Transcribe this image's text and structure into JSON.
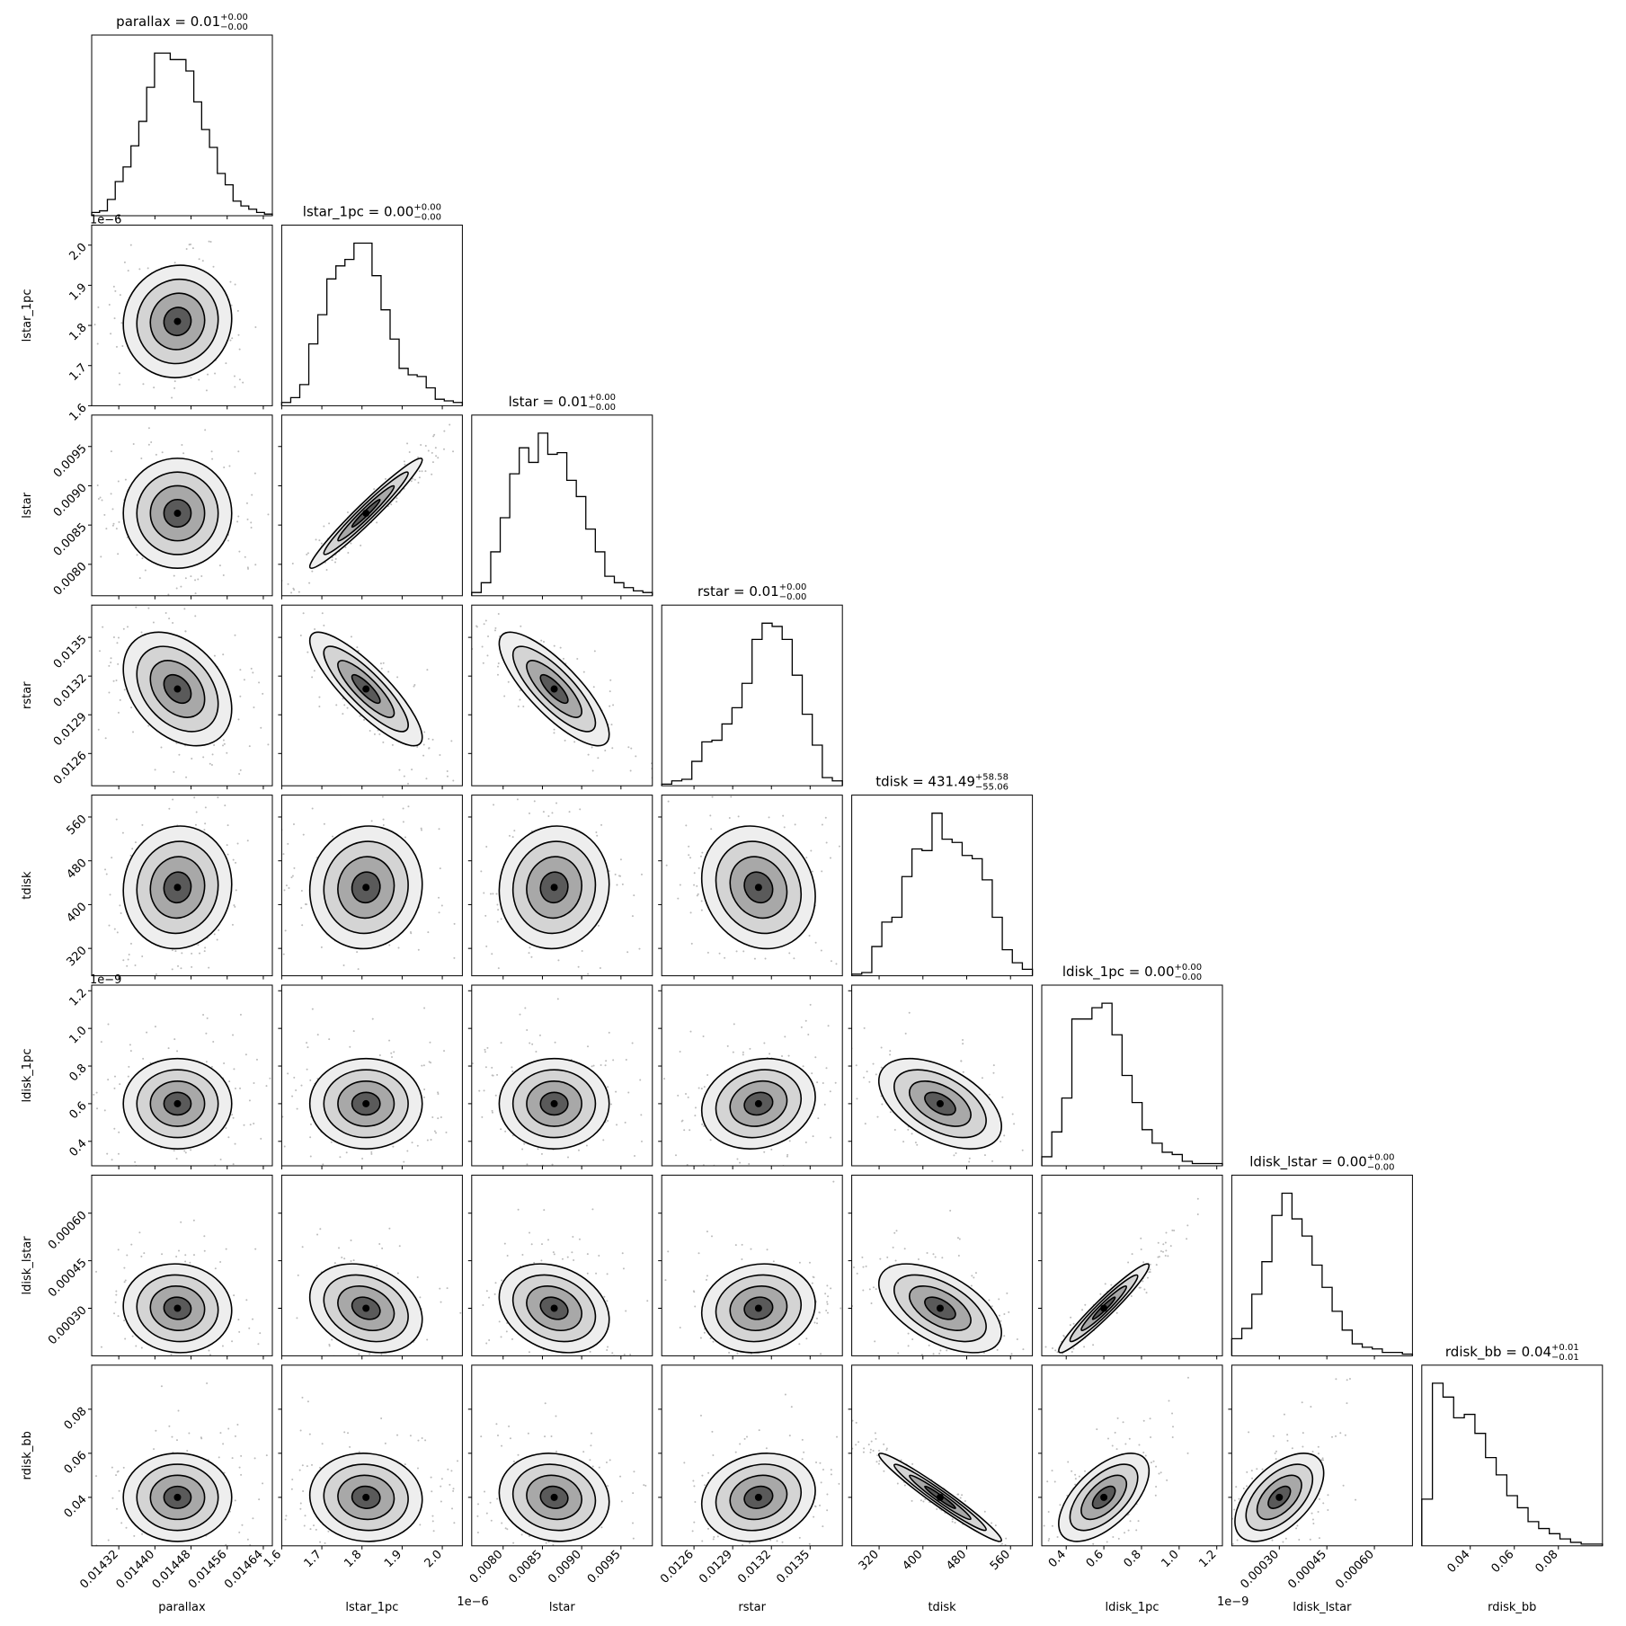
{
  "chart_data": {
    "type": "corner",
    "parameters": [
      {
        "name": "parallax",
        "title_prefix": "parallax = ",
        "median": "0.01",
        "plus": "+0.00",
        "minus": "−0.00",
        "range": [
          0.01426,
          0.01466
        ],
        "ticks": [
          "0.01432",
          "0.01440",
          "0.01448",
          "0.01456",
          "0.01464"
        ],
        "tick_values": [
          0.01432,
          0.0144,
          0.01448,
          0.01456,
          0.01464
        ],
        "offset": "",
        "mean": 0.01445,
        "sd": 6e-05,
        "hist": [
          2,
          3,
          10,
          21,
          30,
          43,
          58,
          79,
          100,
          100,
          96,
          96,
          89,
          70,
          53,
          42,
          26,
          19,
          9,
          6,
          4,
          2,
          1
        ]
      },
      {
        "name": "lstar_1pc",
        "title_prefix": "lstar_1pc = ",
        "median": "0.00",
        "plus": "+0.00",
        "minus": "−0.00",
        "range": [
          1.6,
          2.05
        ],
        "ticks": [
          "1.6",
          "1.7",
          "1.8",
          "1.9",
          "2.0"
        ],
        "tick_values": [
          1.6,
          1.7,
          1.8,
          1.9,
          2.0
        ],
        "offset": "1e−6",
        "mean": 1.81,
        "sd": 0.07,
        "hist": [
          2,
          5,
          13,
          38,
          56,
          78,
          86,
          90,
          100,
          100,
          80,
          59,
          41,
          23,
          19,
          18,
          11,
          4,
          3,
          2
        ]
      },
      {
        "name": "lstar",
        "title_prefix": "lstar = ",
        "median": "0.01",
        "plus": "+0.00",
        "minus": "−0.00",
        "range": [
          0.0076,
          0.0099
        ],
        "ticks": [
          "0.0080",
          "0.0085",
          "0.0090",
          "0.0095"
        ],
        "tick_values": [
          0.008,
          0.0085,
          0.009,
          0.0095
        ],
        "offset": "",
        "mean": 0.00865,
        "sd": 0.00035,
        "hist": [
          2,
          8,
          27,
          48,
          75,
          91,
          82,
          100,
          87,
          88,
          71,
          61,
          41,
          27,
          12,
          8,
          5,
          3,
          2
        ]
      },
      {
        "name": "rstar",
        "title_prefix": "rstar = ",
        "median": "0.01",
        "plus": "+0.00",
        "minus": "−0.00",
        "range": [
          0.01235,
          0.01375
        ],
        "ticks": [
          "0.0126",
          "0.0129",
          "0.0132",
          "0.0135"
        ],
        "tick_values": [
          0.0126,
          0.0129,
          0.0132,
          0.0135
        ],
        "offset": "",
        "mean": 0.0131,
        "sd": 0.00022,
        "hist": [
          1,
          3,
          4,
          15,
          27,
          28,
          38,
          48,
          63,
          90,
          100,
          98,
          90,
          68,
          44,
          25,
          5,
          3
        ]
      },
      {
        "name": "tdisk",
        "title_prefix": "tdisk = ",
        "median": "431.49",
        "plus": "+58.58",
        "minus": "−55.06",
        "range": [
          270,
          600
        ],
        "ticks": [
          "320",
          "400",
          "480",
          "560"
        ],
        "tick_values": [
          320,
          400,
          480,
          560
        ],
        "offset": "",
        "mean": 431.49,
        "sd": 56.0,
        "hist": [
          1,
          2,
          18,
          33,
          36,
          61,
          78,
          77,
          100,
          84,
          82,
          74,
          72,
          59,
          36,
          16,
          8,
          4
        ]
      },
      {
        "name": "ldisk_1pc",
        "title_prefix": "ldisk_1pc = ",
        "median": "0.00",
        "plus": "+0.00",
        "minus": "−0.00",
        "range": [
          0.27,
          1.23
        ],
        "ticks": [
          "0.4",
          "0.6",
          "0.8",
          "1.0",
          "1.2"
        ],
        "tick_values": [
          0.4,
          0.6,
          0.8,
          1.0,
          1.2
        ],
        "offset": "1e−9",
        "mean": 0.6,
        "sd": 0.12,
        "hist": [
          4,
          15,
          30,
          65,
          65,
          70,
          72,
          58,
          40,
          28,
          16,
          10,
          6,
          5,
          2,
          1,
          1,
          1
        ]
      },
      {
        "name": "ldisk_lstar",
        "title_prefix": "ldisk_lstar = ",
        "median": "0.00",
        "plus": "+0.00",
        "minus": "−0.00",
        "range": [
          0.00015,
          0.00072
        ],
        "ticks": [
          "0.00030",
          "0.00045",
          "0.00060"
        ],
        "tick_values": [
          0.0003,
          0.00045,
          0.0006
        ],
        "offset": "",
        "mean": 0.0003,
        "sd": 7e-05,
        "hist": [
          10,
          16,
          36,
          55,
          82,
          95,
          80,
          70,
          53,
          40,
          26,
          15,
          7,
          5,
          4,
          2,
          2,
          1
        ]
      },
      {
        "name": "rdisk_bb",
        "title_prefix": "rdisk_bb = ",
        "median": "0.04",
        "plus": "+0.01",
        "minus": "−0.01",
        "range": [
          0.018,
          0.1
        ],
        "ticks": [
          "0.04",
          "0.06",
          "0.08"
        ],
        "tick_values": [
          0.04,
          0.06,
          0.08
        ],
        "offset": "",
        "mean": 0.04,
        "sd": 0.01,
        "hist": [
          27,
          94,
          86,
          74,
          76,
          65,
          51,
          41,
          29,
          22,
          14,
          10,
          7,
          4,
          2,
          1,
          1
        ]
      }
    ],
    "correlations": [
      [
        0
      ],
      [
        0.05,
        0
      ],
      [
        0.0,
        0.97,
        0
      ],
      [
        -0.35,
        -0.85,
        -0.8,
        0
      ],
      [
        0.05,
        0.05,
        0.05,
        -0.15,
        0
      ],
      [
        0.0,
        0.0,
        0.0,
        0.15,
        -0.5,
        0
      ],
      [
        -0.05,
        -0.25,
        -0.25,
        0.1,
        -0.55,
        0.96,
        0
      ],
      [
        0.0,
        -0.05,
        -0.1,
        0.15,
        -0.97,
        0.6,
        0.55,
        0
      ]
    ]
  }
}
